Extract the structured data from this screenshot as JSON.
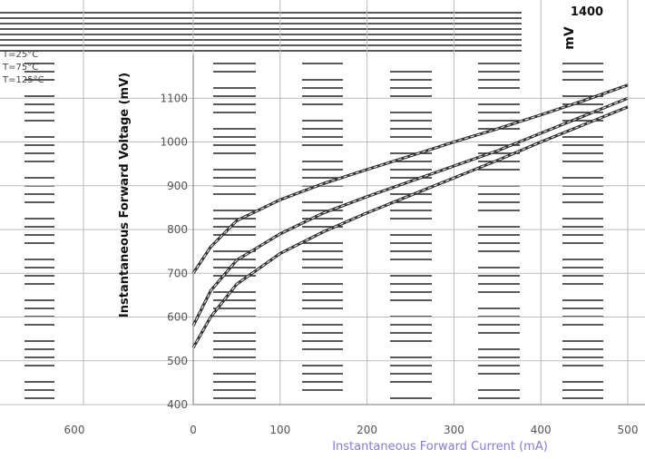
{
  "chart_data": {
    "type": "line",
    "title": "",
    "xlabel": "Instantaneous Forward Current (mA)",
    "ylabel": "Instantaneous Forward Voltage (mV)",
    "unit_label": "mV",
    "top_value": "1400",
    "xlim": [
      0,
      500
    ],
    "ylim": [
      400,
      1200
    ],
    "xticks": [
      0,
      100,
      200,
      300,
      400,
      500
    ],
    "yticks": [
      400,
      500,
      600,
      700,
      800,
      900,
      1000,
      1100
    ],
    "extra_xtick": "600",
    "grid": true,
    "series": [
      {
        "name": "T=25°C",
        "x": [
          0,
          20,
          50,
          100,
          150,
          200,
          250,
          300,
          350,
          400,
          450,
          500
        ],
        "values": [
          700,
          760,
          820,
          868,
          905,
          937,
          968,
          1000,
          1030,
          1062,
          1095,
          1130
        ]
      },
      {
        "name": "T=75°C",
        "x": [
          0,
          20,
          50,
          100,
          150,
          200,
          250,
          300,
          350,
          400,
          450,
          500
        ],
        "values": [
          580,
          660,
          730,
          790,
          838,
          875,
          910,
          945,
          980,
          1020,
          1060,
          1100
        ]
      },
      {
        "name": "T=125°C",
        "x": [
          0,
          20,
          50,
          100,
          150,
          200,
          250,
          300,
          350,
          400,
          450,
          500
        ],
        "values": [
          530,
          600,
          675,
          745,
          795,
          838,
          878,
          918,
          958,
          1000,
          1040,
          1080
        ]
      }
    ]
  }
}
